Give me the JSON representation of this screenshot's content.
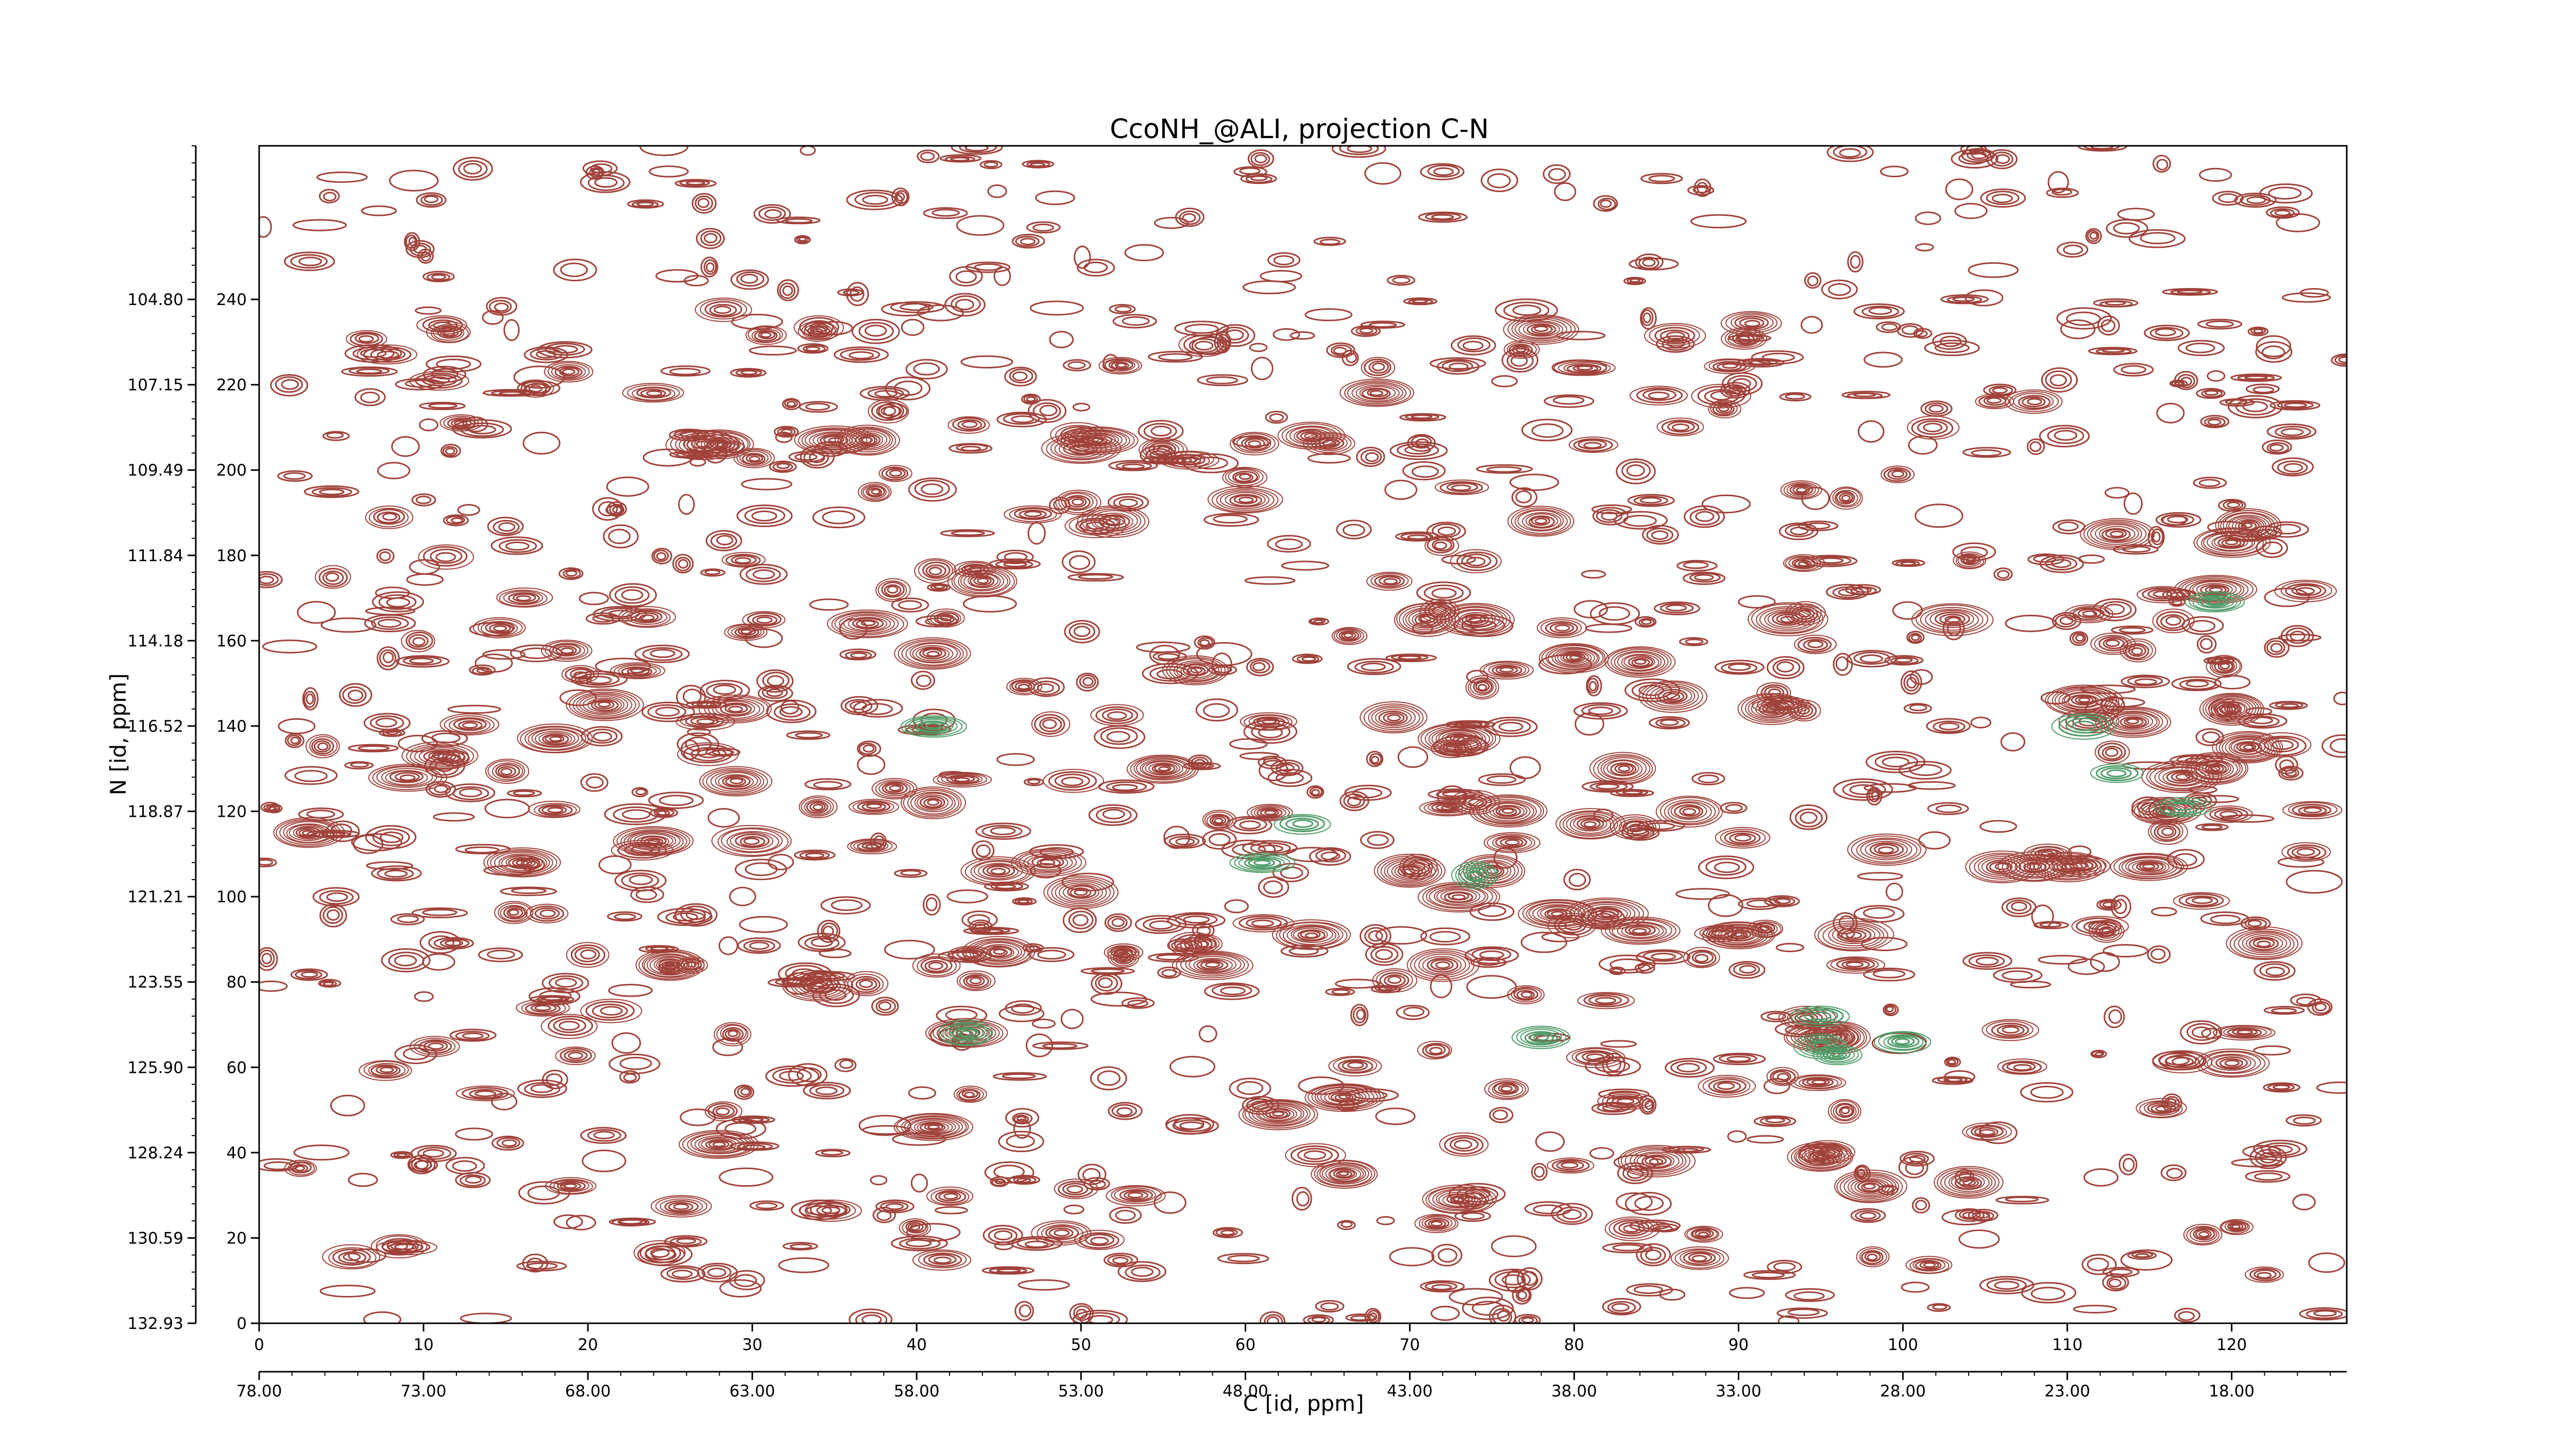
{
  "chart_data": {
    "type": "contour",
    "title": "CcoNH_@ALI, projection C-N",
    "xlabel": "C [id, ppm]",
    "ylabel": "N [id, ppm]",
    "x_index_range": [
      0,
      127
    ],
    "y_index_range": [
      0,
      276
    ],
    "x_index_ticks": [
      "0",
      "10",
      "20",
      "30",
      "40",
      "50",
      "60",
      "70",
      "80",
      "90",
      "100",
      "110",
      "120"
    ],
    "y_index_ticks": [
      "0",
      "20",
      "40",
      "60",
      "80",
      "100",
      "120",
      "140",
      "160",
      "180",
      "200",
      "220",
      "240"
    ],
    "x_ppm_ticks": [
      "78.00",
      "73.00",
      "68.00",
      "63.00",
      "58.00",
      "53.00",
      "48.00",
      "43.00",
      "38.00",
      "33.00",
      "28.00",
      "23.00",
      "18.00"
    ],
    "y_ppm_ticks": [
      "132.93",
      "130.59",
      "128.24",
      "125.90",
      "123.55",
      "121.21",
      "118.87",
      "116.52",
      "114.18",
      "111.84",
      "109.49",
      "107.15",
      "104.80"
    ],
    "colors": {
      "positive": "#a0423a",
      "negative": "#4f9c68"
    },
    "negative_peaks": [
      [
        43,
        68
      ],
      [
        63.5,
        117
      ],
      [
        74,
        105
      ],
      [
        78,
        67
      ],
      [
        95,
        65
      ],
      [
        95,
        72
      ],
      [
        96,
        63
      ],
      [
        100,
        66
      ],
      [
        111,
        140
      ],
      [
        113,
        129
      ],
      [
        117,
        121
      ],
      [
        119,
        169
      ],
      [
        61,
        108
      ],
      [
        41,
        140
      ]
    ],
    "strong_peaks": [
      [
        16,
        108
      ],
      [
        24,
        113
      ],
      [
        25,
        84
      ],
      [
        27,
        206
      ],
      [
        28,
        206
      ],
      [
        29,
        144
      ],
      [
        35,
        207
      ],
      [
        37,
        207
      ],
      [
        51,
        207
      ],
      [
        44,
        174
      ],
      [
        50,
        101
      ],
      [
        37,
        164
      ],
      [
        41,
        157
      ],
      [
        45,
        106
      ],
      [
        52,
        188
      ],
      [
        62,
        49
      ],
      [
        64,
        91
      ],
      [
        64,
        208
      ],
      [
        68,
        218
      ],
      [
        70,
        106
      ],
      [
        71,
        165
      ],
      [
        72,
        84
      ],
      [
        73,
        137
      ],
      [
        73,
        100
      ],
      [
        74,
        165
      ],
      [
        75,
        106
      ],
      [
        78,
        233
      ],
      [
        78,
        188
      ],
      [
        80,
        156
      ],
      [
        81,
        117
      ],
      [
        82,
        96
      ],
      [
        84,
        155
      ],
      [
        84,
        92
      ],
      [
        86,
        147
      ],
      [
        90,
        91
      ],
      [
        92,
        144
      ],
      [
        93,
        165
      ],
      [
        95,
        67
      ],
      [
        96,
        67
      ],
      [
        97,
        91
      ],
      [
        99,
        111
      ],
      [
        103,
        165
      ],
      [
        106,
        107
      ],
      [
        108,
        107
      ],
      [
        110,
        107
      ],
      [
        113,
        185
      ],
      [
        114,
        141
      ],
      [
        115,
        107
      ],
      [
        116,
        120
      ],
      [
        117,
        128
      ],
      [
        119,
        130
      ],
      [
        120,
        144
      ],
      [
        120,
        183
      ],
      [
        119,
        172
      ],
      [
        121,
        187
      ],
      [
        121,
        135
      ],
      [
        122,
        89
      ],
      [
        120,
        61
      ],
      [
        111,
        146
      ],
      [
        87,
        120
      ],
      [
        83,
        130
      ],
      [
        79,
        96
      ],
      [
        76,
        120
      ],
      [
        43,
        68
      ],
      [
        21,
        145
      ],
      [
        29,
        127
      ],
      [
        34,
        79
      ],
      [
        45,
        87
      ],
      [
        58,
        84
      ],
      [
        66,
        53
      ],
      [
        69,
        142
      ],
      [
        60,
        193
      ],
      [
        50,
        205
      ],
      [
        57,
        153
      ],
      [
        98,
        32
      ],
      [
        95,
        39
      ],
      [
        104,
        33
      ],
      [
        28,
        42
      ],
      [
        18,
        137
      ],
      [
        11,
        133
      ],
      [
        9,
        128
      ],
      [
        3,
        115
      ],
      [
        55,
        130
      ],
      [
        66,
        35
      ],
      [
        73,
        29
      ],
      [
        85,
        38
      ],
      [
        41,
        46
      ],
      [
        30,
        113
      ],
      [
        41,
        122
      ],
      [
        48,
        108
      ]
    ]
  }
}
